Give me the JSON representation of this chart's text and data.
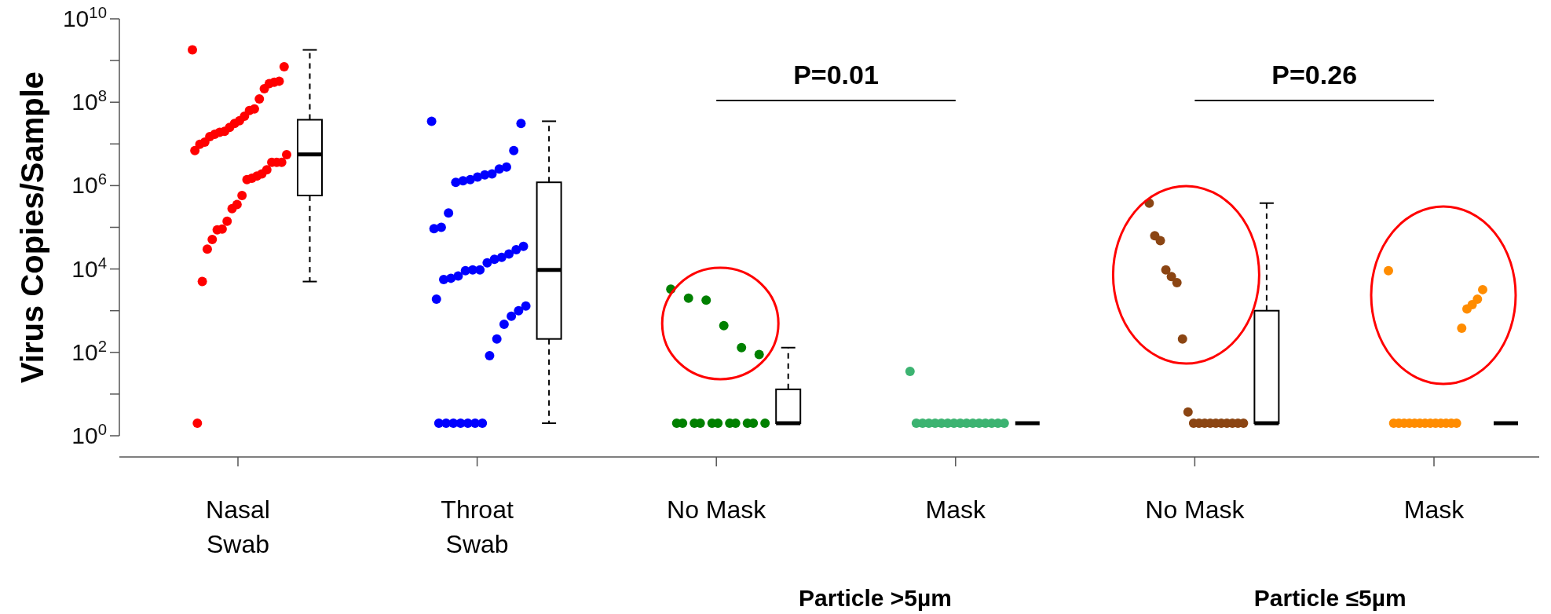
{
  "chart_data": [
    {
      "type": "box",
      "ylabel": "Virus Copies/Sample",
      "log": "y",
      "marker": "circle",
      "color": "#000000",
      "categories": [
        "Nasal\nSwab",
        "Throat\nSwab",
        "No Mask",
        "Mask"
      ],
      "ylim": [
        1,
        10000000000
      ],
      "yticks": [
        {
          "value": 1,
          "label": "10$^{0}$"
        },
        {
          "value": 10,
          "label": null
        },
        {
          "value": 100,
          "label": "10$^{2}$"
        },
        {
          "value": 1000,
          "label": null
        },
        {
          "value": 10000,
          "label": "10$^{4}$"
        },
        {
          "value": 100000,
          "label": null
        },
        {
          "value": 1000000,
          "label": "10$^{6}$"
        },
        {
          "value": 10000000,
          "label": null
        },
        {
          "value": 100000000,
          "label": "10$^{8}$"
        },
        {
          "value": 1000000000,
          "label": null
        },
        {
          "value": 10000000000,
          "label": "10$^{10}$"
        }
      ],
      "boxes": [
        {
          "low": 5000,
          "q1": 580000,
          "median": 5600000,
          "q3": 38000000,
          "high": 1800000000
        },
        {
          "low": 2,
          "q1": 210,
          "median": 9500,
          "q3": 1200000,
          "high": 35000000
        },
        {
          "low": 2,
          "q1": 2,
          "median": 2,
          "q3": 13,
          "high": 130
        },
        {
          "low": 2,
          "q1": 2,
          "median": 2,
          "q3": 2,
          "high": 2
        }
      ],
      "series": [
        {
          "type": "scatter",
          "color": "#ff0000",
          "x": [
            "Nasal\nSwab",
            "Nasal\nSwab",
            "Nasal\nSwab",
            "Nasal\nSwab",
            "Nasal\nSwab",
            "Nasal\nSwab",
            "Nasal\nSwab",
            "Nasal\nSwab",
            "Nasal\nSwab",
            "Nasal\nSwab",
            "Nasal\nSwab",
            "Nasal\nSwab",
            "Nasal\nSwab",
            "Nasal\nSwab",
            "Nasal\nSwab",
            "Nasal\nSwab",
            "Nasal\nSwab",
            "Nasal\nSwab",
            "Nasal\nSwab",
            "Nasal\nSwab",
            "Nasal\nSwab",
            "Nasal\nSwab",
            "Nasal\nSwab",
            "Nasal\nSwab",
            "Nasal\nSwab",
            "Nasal\nSwab",
            "Nasal\nSwab",
            "Nasal\nSwab",
            "Nasal\nSwab",
            "Nasal\nSwab",
            "Nasal\nSwab",
            "Nasal\nSwab",
            "Nasal\nSwab",
            "Nasal\nSwab",
            "Nasal\nSwab",
            "Nasal\nSwab",
            "Nasal\nSwab",
            "Nasal\nSwab",
            "Nasal\nSwab"
          ],
          "values": [
            1800000000,
            710000000,
            320000000,
            300000000,
            280000000,
            210000000,
            120000000,
            69000000,
            63000000,
            46000000,
            36000000,
            31000000,
            25000000,
            20000000,
            19000000,
            17000000,
            15000000,
            11000000,
            9800000,
            6900000,
            5500000,
            3600000,
            3600000,
            3600000,
            2400000,
            1900000,
            1700000,
            1500000,
            1400000,
            580000,
            350000,
            280000,
            140000,
            91000,
            87000,
            51000,
            30000,
            5000,
            2
          ]
        },
        {
          "type": "scatter",
          "color": "#0000ff",
          "x": [
            "Throat\nSwab",
            "Throat\nSwab",
            "Throat\nSwab",
            "Throat\nSwab",
            "Throat\nSwab",
            "Throat\nSwab",
            "Throat\nSwab",
            "Throat\nSwab",
            "Throat\nSwab",
            "Throat\nSwab",
            "Throat\nSwab",
            "Throat\nSwab",
            "Throat\nSwab",
            "Throat\nSwab",
            "Throat\nSwab",
            "Throat\nSwab",
            "Throat\nSwab",
            "Throat\nSwab",
            "Throat\nSwab",
            "Throat\nSwab",
            "Throat\nSwab",
            "Throat\nSwab",
            "Throat\nSwab",
            "Throat\nSwab",
            "Throat\nSwab",
            "Throat\nSwab",
            "Throat\nSwab",
            "Throat\nSwab",
            "Throat\nSwab",
            "Throat\nSwab",
            "Throat\nSwab",
            "Throat\nSwab",
            "Throat\nSwab",
            "Throat\nSwab",
            "Throat\nSwab",
            "Throat\nSwab",
            "Throat\nSwab",
            "Throat\nSwab",
            "Throat\nSwab",
            "Throat\nSwab"
          ],
          "values": [
            35000000,
            31000000,
            6900000,
            2800000,
            2500000,
            1900000,
            1800000,
            1600000,
            1400000,
            1300000,
            1200000,
            220000,
            100000,
            93000,
            35000,
            29000,
            23000,
            19000,
            17000,
            14000,
            9500,
            9500,
            9100,
            6800,
            6000,
            5600,
            1900,
            1300,
            1000,
            740,
            470,
            210,
            83,
            2,
            2,
            2,
            2,
            2,
            2,
            2
          ]
        },
        {
          "type": "scatter",
          "color": "#008000",
          "x": [
            "No Mask",
            "No Mask",
            "No Mask",
            "No Mask",
            "No Mask",
            "No Mask",
            "No Mask",
            "No Mask",
            "No Mask",
            "No Mask",
            "No Mask",
            "No Mask",
            "No Mask",
            "No Mask",
            "No Mask",
            "No Mask",
            "No Mask"
          ],
          "values": [
            3300,
            2000,
            1800,
            440,
            130,
            89,
            2,
            2,
            2,
            2,
            2,
            2,
            2,
            2,
            2,
            2,
            2
          ]
        },
        {
          "type": "scatter",
          "color": "#3cb371",
          "x": [
            "Mask",
            "Mask",
            "Mask",
            "Mask",
            "Mask",
            "Mask",
            "Mask",
            "Mask",
            "Mask",
            "Mask",
            "Mask",
            "Mask",
            "Mask",
            "Mask",
            "Mask",
            "Mask"
          ],
          "values": [
            35,
            2,
            2,
            2,
            2,
            2,
            2,
            2,
            2,
            2,
            2,
            2,
            2,
            2,
            2,
            2
          ]
        }
      ],
      "annotations": [
        "P=0.01",
        "Particle >5µm"
      ]
    },
    {
      "type": "box",
      "log": "y",
      "marker": "circle",
      "color": "#000000",
      "tick_labels": "x",
      "categories": [
        "No Mask",
        "Mask"
      ],
      "ylim": [
        1,
        10000000000
      ],
      "boxes": [
        {
          "low": 2,
          "q1": 2,
          "median": 2,
          "q3": 1000,
          "high": 380000
        },
        {
          "low": 2,
          "q1": 2,
          "median": 2,
          "q3": 2,
          "high": 2
        }
      ],
      "series": [
        {
          "type": "scatter",
          "color": "#8b4513",
          "x": [
            "No Mask",
            "No Mask",
            "No Mask",
            "No Mask",
            "No Mask",
            "No Mask",
            "No Mask",
            "No Mask",
            "No Mask",
            "No Mask",
            "No Mask",
            "No Mask",
            "No Mask",
            "No Mask",
            "No Mask",
            "No Mask",
            "No Mask",
            "No Mask"
          ],
          "values": [
            380000,
            63000,
            48000,
            9500,
            6600,
            4700,
            210,
            3.7,
            2,
            2,
            2,
            2,
            2,
            2,
            2,
            2,
            2,
            2
          ]
        },
        {
          "type": "scatter",
          "color": "#ff8c00",
          "x": [
            "Mask",
            "Mask",
            "Mask",
            "Mask",
            "Mask",
            "Mask",
            "Mask",
            "Mask",
            "Mask",
            "Mask",
            "Mask",
            "Mask",
            "Mask",
            "Mask",
            "Mask",
            "Mask",
            "Mask",
            "Mask",
            "Mask"
          ],
          "values": [
            9100,
            3200,
            1900,
            1400,
            1100,
            380,
            2,
            2,
            2,
            2,
            2,
            2,
            2,
            2,
            2,
            2,
            2,
            2,
            2
          ]
        }
      ],
      "annotations": [
        "P=0.26",
        "Particle ≤5µm"
      ]
    }
  ]
}
